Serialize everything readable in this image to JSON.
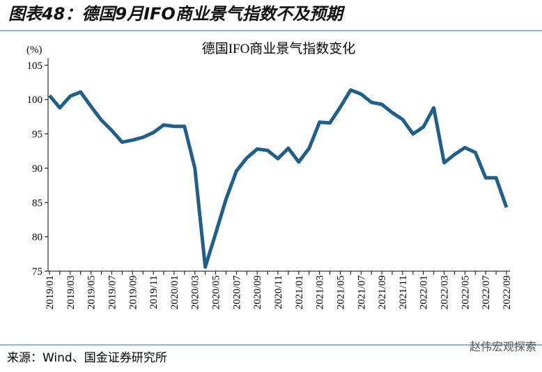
{
  "header": {
    "title": "图表48：德国9月IFO商业景气指数不及预期"
  },
  "chart_data": {
    "type": "line",
    "title": "德国IFO商业景气指数变化",
    "y_unit": "(%)",
    "categories": [
      "2019/01",
      null,
      "2019/03",
      null,
      "2019/05",
      null,
      "2019/07",
      null,
      "2019/09",
      null,
      "2019/11",
      null,
      "2020/01",
      null,
      "2020/03",
      null,
      "2020/05",
      null,
      "2020/07",
      null,
      "2020/09",
      null,
      "2020/11",
      null,
      "2021/01",
      null,
      "2021/03",
      null,
      "2021/05",
      null,
      "2021/07",
      null,
      "2021/09",
      null,
      "2021/11",
      null,
      "2022/01",
      null,
      "2022/03",
      null,
      "2022/05",
      null,
      "2022/07",
      null,
      "2022/09"
    ],
    "series": [
      {
        "name": "德国IFO商业景气指数",
        "color": "#1f5f8b",
        "values": [
          100.6,
          98.8,
          100.5,
          101.1,
          99.0,
          97.0,
          95.5,
          93.8,
          94.1,
          94.5,
          95.2,
          96.3,
          96.1,
          96.1,
          90.0,
          75.6,
          80.5,
          85.5,
          89.6,
          91.5,
          92.8,
          92.6,
          91.4,
          92.9,
          90.9,
          92.9,
          96.7,
          96.6,
          98.9,
          101.4,
          100.8,
          99.6,
          99.3,
          98.1,
          97.1,
          95.0,
          96.0,
          98.8,
          90.8,
          92.0,
          93.0,
          92.3,
          88.6,
          88.6,
          84.3
        ]
      }
    ],
    "ylim": [
      75,
      106
    ],
    "yticks": [
      75,
      80,
      85,
      90,
      95,
      100,
      105
    ]
  },
  "footer": {
    "source": "来源：Wind、国金证券研究所",
    "watermark": "赵伟宏观探索"
  }
}
